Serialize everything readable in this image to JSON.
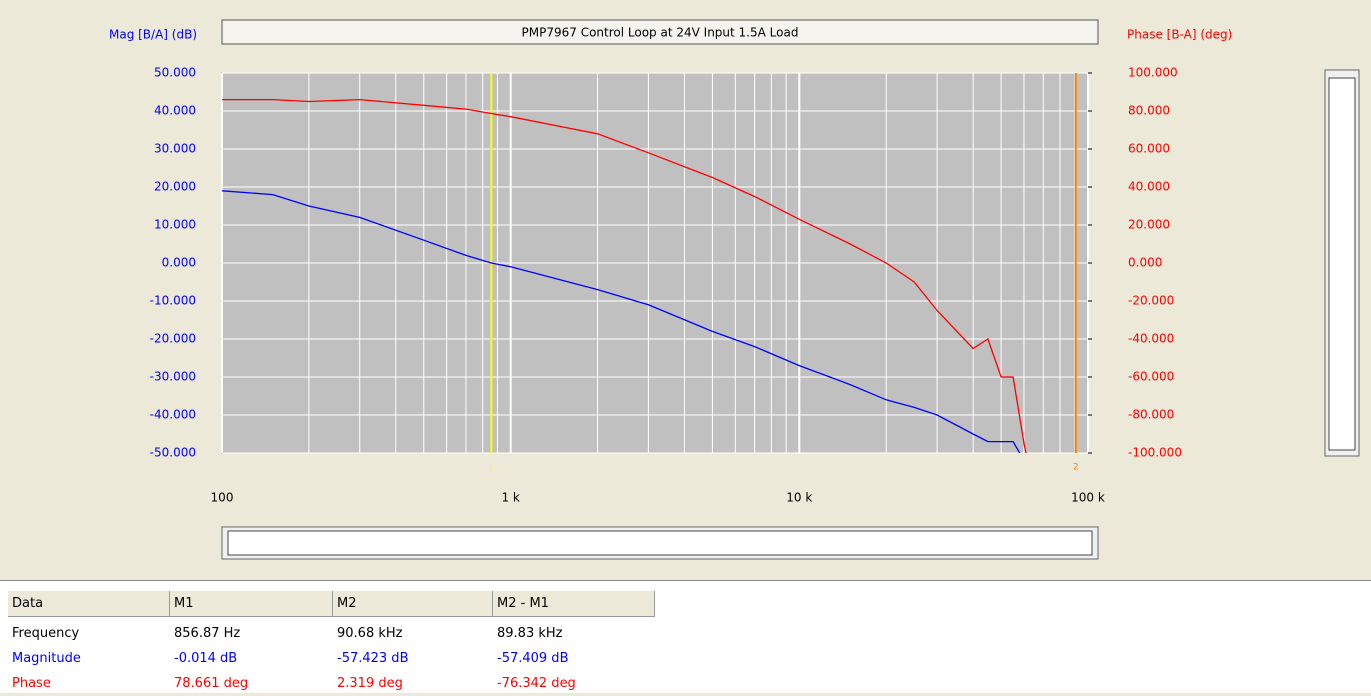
{
  "chart_data": {
    "type": "line",
    "title": "PMP7967 Control Loop at 24V Input 1.5A Load",
    "y_label": "Mag [B/A] (dB)",
    "y2_label": "Phase [B-A] (deg)",
    "xscale": "log",
    "grid": true,
    "xlim": [
      100,
      100000
    ],
    "xticks": [
      {
        "value": 100,
        "label": "100"
      },
      {
        "value": 1000,
        "label": "1 k"
      },
      {
        "value": 10000,
        "label": "10 k"
      },
      {
        "value": 100000,
        "label": "100 k"
      }
    ],
    "ylim": [
      -50,
      50
    ],
    "yticks": [
      {
        "value": 50,
        "label": "50.000"
      },
      {
        "value": 40,
        "label": "40.000"
      },
      {
        "value": 30,
        "label": "30.000"
      },
      {
        "value": 20,
        "label": "20.000"
      },
      {
        "value": 10,
        "label": "10.000"
      },
      {
        "value": 0,
        "label": "0.000"
      },
      {
        "value": -10,
        "label": "-10.000"
      },
      {
        "value": -20,
        "label": "-20.000"
      },
      {
        "value": -30,
        "label": "-30.000"
      },
      {
        "value": -40,
        "label": "-40.000"
      },
      {
        "value": -50,
        "label": "-50.000"
      }
    ],
    "y2lim": [
      -100,
      100
    ],
    "y2ticks": [
      {
        "value": 100,
        "label": "100.000"
      },
      {
        "value": 80,
        "label": "80.000"
      },
      {
        "value": 60,
        "label": "60.000"
      },
      {
        "value": 40,
        "label": "40.000"
      },
      {
        "value": 20,
        "label": "20.000"
      },
      {
        "value": 0,
        "label": "0.000"
      },
      {
        "value": -20,
        "label": "-20.000"
      },
      {
        "value": -40,
        "label": "-40.000"
      },
      {
        "value": -60,
        "label": "-60.000"
      },
      {
        "value": -80,
        "label": "-80.000"
      },
      {
        "value": -100,
        "label": "-100.000"
      }
    ],
    "x": [
      100,
      150,
      200,
      300,
      500,
      700,
      856.87,
      1000,
      2000,
      3000,
      5000,
      7000,
      10000,
      15000,
      20000,
      25000,
      30000,
      40000,
      45000,
      50000,
      55000,
      60000,
      65000
    ],
    "series": [
      {
        "name": "Magnitude",
        "color": "#0000ff",
        "values": [
          19,
          18,
          15,
          12,
          6,
          2,
          0,
          -1,
          -7,
          -11,
          -18,
          -22,
          -27,
          -32,
          -36,
          -38,
          -40,
          -45,
          -47,
          -47,
          -47,
          -52,
          -57
        ]
      },
      {
        "name": "Phase",
        "color": "#ff0000",
        "axis": "y2",
        "values": [
          86,
          86,
          85,
          86,
          83,
          81,
          78.7,
          77,
          68,
          58,
          45,
          35,
          23,
          10,
          0,
          -10,
          -25,
          -45,
          -40,
          -60,
          -60,
          -95,
          -120
        ]
      }
    ],
    "markers": [
      {
        "label": "1",
        "x": 856.87,
        "color": "#ffff00"
      },
      {
        "label": "2",
        "x": 90680,
        "color": "#ff8000"
      }
    ]
  },
  "table": {
    "header": [
      "Data",
      "M1",
      "M2",
      "M2 - M1"
    ],
    "rows": [
      [
        "Frequency",
        "856.87 Hz",
        "90.68 kHz",
        "89.83 kHz"
      ],
      [
        "Magnitude",
        "-0.014 dB",
        "-57.423 dB",
        "-57.409 dB"
      ],
      [
        "Phase",
        "78.661 deg",
        "2.319 deg",
        "-76.342 deg"
      ]
    ]
  }
}
